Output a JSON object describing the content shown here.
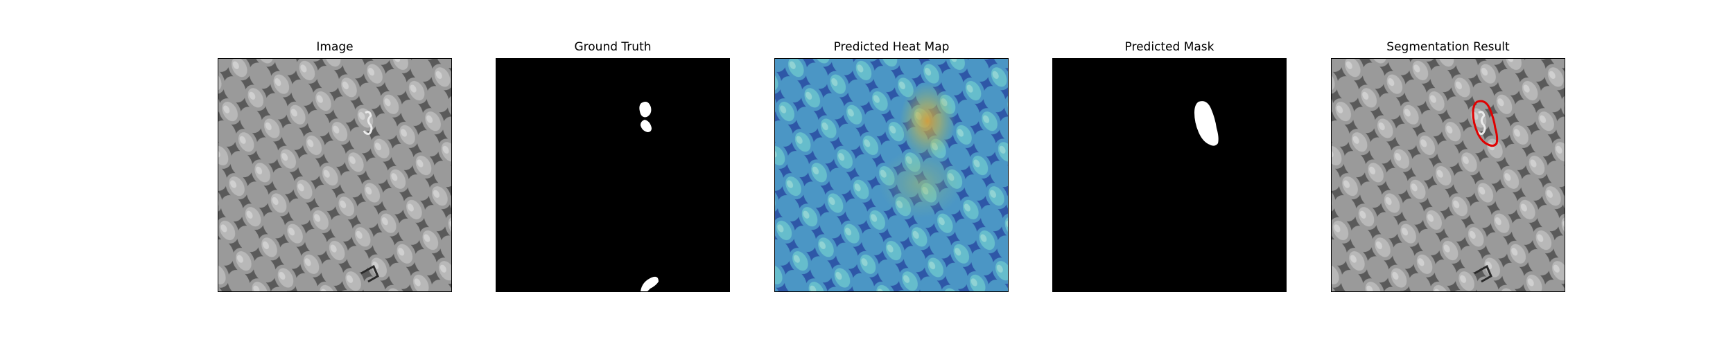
{
  "figure": {
    "panels": [
      {
        "title": "Image",
        "content": "grayscale-texture-image"
      },
      {
        "title": "Ground Truth",
        "content": "binary-ground-truth-mask"
      },
      {
        "title": "Predicted Heat Map",
        "content": "heatmap-overlay"
      },
      {
        "title": "Predicted Mask",
        "content": "binary-predicted-mask"
      },
      {
        "title": "Segmentation Result",
        "content": "image-with-red-contour"
      }
    ],
    "colors": {
      "mask_background": "#000000",
      "mask_foreground": "#ffffff",
      "contour": "#e00000",
      "heat_low": "#3b6fd8",
      "heat_mid": "#5cc8c0",
      "heat_high": "#f0c030"
    }
  }
}
